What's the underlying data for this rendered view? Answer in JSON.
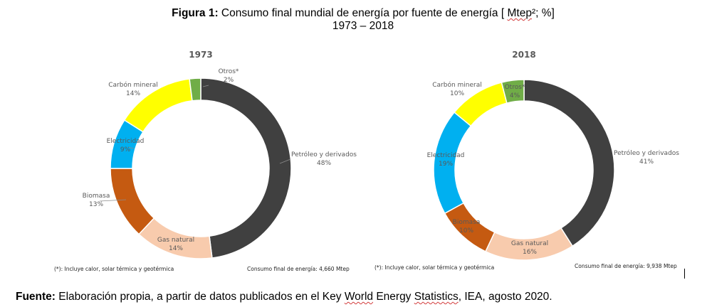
{
  "figure": {
    "title_bold": "Figura 1:",
    "title_text_before": " Consumo final mundial de energía por fuente de energía [ ",
    "title_unit": "Mtep",
    "title_text_after": "²; %]",
    "subtitle": "1973 – 2018"
  },
  "source": {
    "bold": "Fuente:",
    "text_before": " Elaboración propia, a partir de datos publicados en el Key ",
    "word_world": "World",
    "text_mid": " Energy ",
    "word_statistics": "Statistics",
    "text_after": ", IEA, agosto 2020."
  },
  "chart_data": [
    {
      "type": "pie",
      "style": "donut",
      "title": "1973",
      "unit": "%",
      "slices": [
        {
          "label": "Petróleo y derivados",
          "value": 48,
          "color": "#404040"
        },
        {
          "label": "Gas natural",
          "value": 14,
          "color": "#f8cbad"
        },
        {
          "label": "Biomasa",
          "value": 13,
          "color": "#c55a11"
        },
        {
          "label": "Electricidad",
          "value": 9,
          "color": "#00b0f0"
        },
        {
          "label": "Carbón mineral",
          "value": 14,
          "color": "#ffff00"
        },
        {
          "label": "Otros*",
          "value": 2,
          "color": "#70ad47"
        }
      ],
      "labels_text": {
        "Petróleo y derivados": "48%",
        "Gas natural": "14%",
        "Biomasa": "13%",
        "Electricidad": "9%",
        "Carbón mineral": "14%",
        "Otros*": "2%"
      },
      "note": "(*): Incluye calor, solar térmica y geotérmica",
      "total": "Consumo final de energía: 4,660 Mtep"
    },
    {
      "type": "pie",
      "style": "donut",
      "title": "2018",
      "unit": "%",
      "slices": [
        {
          "label": "Petróleo y derivados",
          "value": 41,
          "color": "#404040"
        },
        {
          "label": "Gas natural",
          "value": 16,
          "color": "#f8cbad"
        },
        {
          "label": "Biomasa",
          "value": 10,
          "color": "#c55a11"
        },
        {
          "label": "Electricidad",
          "value": 19,
          "color": "#00b0f0"
        },
        {
          "label": "Carbón mineral",
          "value": 10,
          "color": "#ffff00"
        },
        {
          "label": "Otros*",
          "value": 4,
          "color": "#70ad47"
        }
      ],
      "labels_text": {
        "Petróleo y derivados": "41%",
        "Gas natural": "16%",
        "Biomasa": "10%",
        "Electricidad": "19%",
        "Carbón mineral": "10%",
        "Otros*": "4%"
      },
      "note": "(*): Incluye calor, solar térmica y geotérmica",
      "total": "Consumo final de energía: 9,938 Mtep"
    }
  ]
}
